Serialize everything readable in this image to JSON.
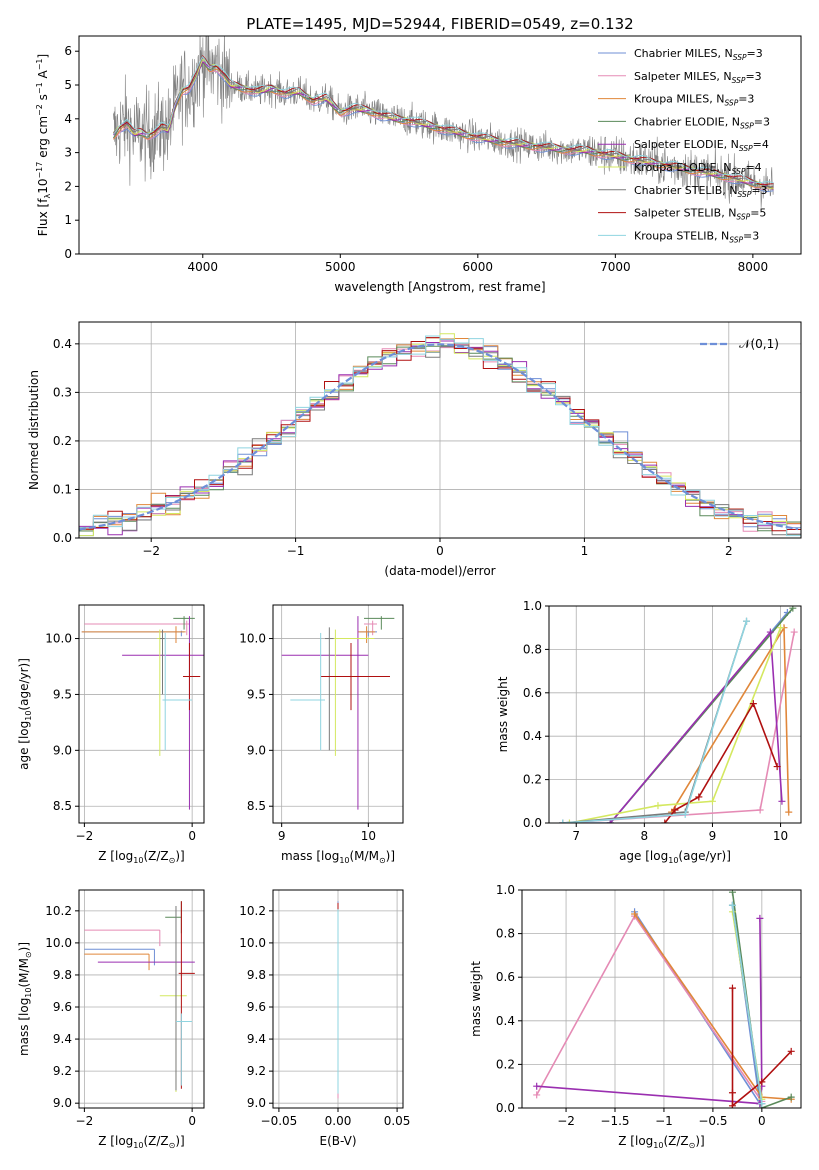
{
  "figure": {
    "title": "PLATE=1495, MJD=52944, FIBERID=0549, z=0.132"
  },
  "colors": {
    "Chabrier MILES": "#6f8fd6",
    "Salpeter MILES": "#e58bb5",
    "Kroupa MILES": "#e0873a",
    "Chabrier ELODIE": "#5a8a5a",
    "Salpeter ELODIE": "#9a2fb0",
    "Kroupa ELODIE": "#d4e860",
    "Chabrier STELIB": "#7a7a7a",
    "Salpeter STELIB": "#b01010",
    "Kroupa STELIB": "#8fd4e0"
  },
  "legend": [
    {
      "key": "Chabrier MILES",
      "pre": "Chabrier MILES, N",
      "sub": "SSP",
      "post": "=3"
    },
    {
      "key": "Salpeter MILES",
      "pre": "Salpeter MILES, N",
      "sub": "SSP",
      "post": "=3"
    },
    {
      "key": "Kroupa MILES",
      "pre": "Kroupa MILES, N",
      "sub": "SSP",
      "post": "=3"
    },
    {
      "key": "Chabrier ELODIE",
      "pre": "Chabrier ELODIE, N",
      "sub": "SSP",
      "post": "=3"
    },
    {
      "key": "Salpeter ELODIE",
      "pre": "Salpeter ELODIE, N",
      "sub": "SSP",
      "post": "=4"
    },
    {
      "key": "Kroupa ELODIE",
      "pre": "Kroupa ELODIE, N",
      "sub": "SSP",
      "post": "=4"
    },
    {
      "key": "Chabrier STELIB",
      "pre": "Chabrier STELIB, N",
      "sub": "SSP",
      "post": "=3"
    },
    {
      "key": "Salpeter STELIB",
      "pre": "Salpeter STELIB, N",
      "sub": "SSP",
      "post": "=5"
    },
    {
      "key": "Kroupa STELIB",
      "pre": "Kroupa STELIB, N",
      "sub": "SSP",
      "post": "=3"
    }
  ],
  "chart_data": [
    {
      "id": "spectrum",
      "type": "line",
      "xlabel": "wavelength [Angstrom, rest frame]",
      "ylabel_parts": {
        "pre": "Flux [f",
        "sub": "λ",
        "mid": "10",
        "sup1": "−17",
        "mid2": " erg cm",
        "sup2": "−2",
        "mid3": " s",
        "sup3": "−1",
        "mid4": " A",
        "sup4": "−1",
        "post": "]"
      },
      "xlim": [
        3100,
        8350
      ],
      "ylim": [
        0,
        6.45
      ],
      "xticks": [
        4000,
        5000,
        6000,
        7000,
        8000
      ],
      "yticks": [
        0,
        1,
        2,
        3,
        4,
        5,
        6
      ],
      "grid": false,
      "model_continuum": {
        "x": [
          3350,
          3400,
          3450,
          3500,
          3550,
          3600,
          3650,
          3700,
          3750,
          3800,
          3850,
          3900,
          3950,
          4000,
          4050,
          4100,
          4150,
          4200,
          4300,
          4400,
          4500,
          4600,
          4700,
          4800,
          4900,
          5000,
          5100,
          5200,
          5300,
          5400,
          5500,
          5600,
          5700,
          5800,
          5900,
          6000,
          6200,
          6400,
          6600,
          6800,
          7000,
          7200,
          7400,
          7600,
          7800,
          8000,
          8150
        ],
        "y": [
          3.5,
          3.75,
          3.85,
          3.55,
          3.6,
          3.5,
          3.6,
          3.75,
          3.65,
          4.4,
          4.85,
          4.9,
          5.25,
          5.75,
          5.5,
          5.55,
          5.3,
          5.0,
          4.9,
          4.8,
          4.9,
          4.75,
          4.8,
          4.55,
          4.6,
          4.2,
          4.3,
          4.25,
          4.1,
          4.0,
          3.95,
          3.85,
          3.75,
          3.65,
          3.55,
          3.45,
          3.3,
          3.2,
          3.1,
          3.05,
          2.9,
          2.75,
          2.6,
          2.45,
          2.3,
          2.1,
          1.95
        ]
      },
      "observed_range": [
        3350,
        8150
      ],
      "observed_scatter": 0.55
    },
    {
      "id": "residuals",
      "type": "step-histogram",
      "xlabel": "(data-model)/error",
      "ylabel": "Normed distribution",
      "xlim": [
        -2.5,
        2.5
      ],
      "ylim": [
        0,
        0.445
      ],
      "xticks": [
        -2,
        -1,
        0,
        1,
        2
      ],
      "yticks": [
        0.0,
        0.1,
        0.2,
        0.3,
        0.4
      ],
      "grid": true,
      "bin_width": 0.1,
      "reference_curve": {
        "label": "𝒩(0,1)",
        "mean": 0,
        "sigma": 1
      },
      "jitter": 0.03
    },
    {
      "id": "age_vs_Z",
      "type": "errorbar",
      "xlabel_parts": {
        "pre": "Z [log",
        "sub1": "10",
        "mid": "(Z/Z",
        "sub2": "⊙",
        "post": ")]"
      },
      "ylabel_parts": {
        "pre": "age  [log",
        "sub1": "10",
        "post": "(age/yr)]"
      },
      "xlim": [
        -2.1,
        0.22
      ],
      "ylim": [
        8.35,
        10.3
      ],
      "xticks": [
        -2,
        0
      ],
      "yticks": [
        8.5,
        9.0,
        9.5,
        10.0
      ],
      "grid": true,
      "points": [
        {
          "key": "Chabrier MILES",
          "x": -0.2,
          "xerr": [
            1.85,
            0.05
          ],
          "y": 10.06,
          "yerr": [
            0.04,
            0.01
          ]
        },
        {
          "key": "Salpeter MILES",
          "x": -0.1,
          "xerr": [
            1.9,
            0.05
          ],
          "y": 10.13,
          "yerr": [
            0.1,
            0.03
          ]
        },
        {
          "key": "Kroupa MILES",
          "x": -0.3,
          "xerr": [
            1.75,
            0.18
          ],
          "y": 10.06,
          "yerr": [
            0.1,
            0.05
          ]
        },
        {
          "key": "Chabrier ELODIE",
          "x": -0.15,
          "xerr": [
            0.2,
            0.2
          ],
          "y": 10.18,
          "yerr": [
            0.1,
            0.02
          ]
        },
        {
          "key": "Salpeter ELODIE",
          "x": -0.05,
          "xerr": [
            1.25,
            0.75
          ],
          "y": 9.85,
          "yerr": [
            1.38,
            0.35
          ]
        },
        {
          "key": "Kroupa ELODIE",
          "x": -0.6,
          "xerr": [
            0.05,
            0.05
          ],
          "y": 10.0,
          "yerr": [
            1.05,
            0.08
          ]
        },
        {
          "key": "Chabrier STELIB",
          "x": -0.55,
          "xerr": [
            0.05,
            0.05
          ],
          "y": 10.0,
          "yerr": [
            0.5,
            0.08
          ]
        },
        {
          "key": "Salpeter STELIB",
          "x": -0.05,
          "xerr": [
            0.12,
            0.2
          ],
          "y": 9.66,
          "yerr": [
            0.3,
            0.3
          ]
        },
        {
          "key": "Kroupa STELIB",
          "x": -0.5,
          "xerr": [
            0.05,
            0.5
          ],
          "y": 9.45,
          "yerr": [
            0.45,
            0.6
          ]
        }
      ]
    },
    {
      "id": "age_vs_mass",
      "type": "errorbar",
      "xlabel_parts": {
        "pre": "mass [log",
        "sub1": "10",
        "mid": "(M/M",
        "sub2": "⊙",
        "post": ")]"
      },
      "xlim": [
        8.9,
        10.4
      ],
      "ylim": [
        8.35,
        10.3
      ],
      "xticks": [
        9,
        10
      ],
      "yticks": [
        8.5,
        9.0,
        9.5,
        10.0
      ],
      "grid": true,
      "points": [
        {
          "key": "Chabrier MILES",
          "x": 10.0,
          "xerr": [
            0.1,
            0.1
          ],
          "y": 10.06,
          "yerr": [
            0.04,
            0.01
          ]
        },
        {
          "key": "Salpeter MILES",
          "x": 10.05,
          "xerr": [
            0.1,
            0.05
          ],
          "y": 10.13,
          "yerr": [
            0.1,
            0.03
          ]
        },
        {
          "key": "Kroupa MILES",
          "x": 9.98,
          "xerr": [
            0.1,
            0.1
          ],
          "y": 10.06,
          "yerr": [
            0.1,
            0.05
          ]
        },
        {
          "key": "Chabrier ELODIE",
          "x": 10.15,
          "xerr": [
            0.2,
            0.15
          ],
          "y": 10.18,
          "yerr": [
            0.1,
            0.02
          ]
        },
        {
          "key": "Salpeter ELODIE",
          "x": 9.88,
          "xerr": [
            0.88,
            0.12
          ],
          "y": 9.85,
          "yerr": [
            1.38,
            0.35
          ]
        },
        {
          "key": "Kroupa ELODIE",
          "x": 9.62,
          "xerr": [
            0.05,
            0.45
          ],
          "y": 10.0,
          "yerr": [
            1.05,
            0.08
          ]
        },
        {
          "key": "Chabrier STELIB",
          "x": 9.55,
          "xerr": [
            0.05,
            0.05
          ],
          "y": 10.0,
          "yerr": [
            1.0,
            0.1
          ]
        },
        {
          "key": "Salpeter STELIB",
          "x": 9.8,
          "xerr": [
            0.35,
            0.45
          ],
          "y": 9.66,
          "yerr": [
            0.3,
            0.3
          ]
        },
        {
          "key": "Kroupa STELIB",
          "x": 9.45,
          "xerr": [
            0.35,
            0.05
          ],
          "y": 9.45,
          "yerr": [
            0.45,
            0.6
          ]
        }
      ]
    },
    {
      "id": "mass_weight_vs_age",
      "type": "line",
      "xlabel_parts": {
        "pre": "age  [log",
        "sub1": "10",
        "post": "(age/yr)]"
      },
      "ylabel": "mass weight",
      "xlim": [
        6.6,
        10.3
      ],
      "ylim": [
        0,
        1.0
      ],
      "xticks": [
        7,
        8,
        9,
        10
      ],
      "yticks": [
        0.0,
        0.2,
        0.4,
        0.6,
        0.8,
        1.0
      ],
      "grid": true,
      "series": [
        {
          "key": "Chabrier MILES",
          "x": [
            6.8,
            7.5,
            10.1
          ],
          "y": [
            0.0,
            0.0,
            0.97
          ]
        },
        {
          "key": "Salpeter MILES",
          "x": [
            6.8,
            9.7,
            10.2
          ],
          "y": [
            0.0,
            0.06,
            0.88
          ]
        },
        {
          "key": "Kroupa MILES",
          "x": [
            8.4,
            10.05,
            10.12
          ],
          "y": [
            0.05,
            0.9,
            0.05
          ]
        },
        {
          "key": "Chabrier ELODIE",
          "x": [
            7.5,
            10.18
          ],
          "y": [
            0.0,
            0.99
          ]
        },
        {
          "key": "Salpeter ELODIE",
          "x": [
            7.5,
            9.85,
            10.02
          ],
          "y": [
            0.0,
            0.88,
            0.1
          ]
        },
        {
          "key": "Kroupa ELODIE",
          "x": [
            6.9,
            8.2,
            9.0,
            10.0
          ],
          "y": [
            0.0,
            0.08,
            0.1,
            0.9
          ]
        },
        {
          "key": "Chabrier STELIB",
          "x": [
            6.8,
            8.6,
            9.5
          ],
          "y": [
            0.0,
            0.05,
            0.93
          ]
        },
        {
          "key": "Salpeter STELIB",
          "x": [
            8.3,
            8.45,
            8.8,
            9.6,
            9.95
          ],
          "y": [
            0.0,
            0.06,
            0.12,
            0.55,
            0.26
          ]
        },
        {
          "key": "Kroupa STELIB",
          "x": [
            6.8,
            8.6,
            9.5
          ],
          "y": [
            0.0,
            0.04,
            0.93
          ]
        }
      ]
    },
    {
      "id": "mass_vs_Z",
      "type": "errorbar",
      "xlabel_parts": {
        "pre": "Z [log",
        "sub1": "10",
        "mid": "(Z/Z",
        "sub2": "⊙",
        "post": ")]"
      },
      "ylabel_parts": {
        "pre": "mass [log",
        "sub1": "10",
        "mid": "(M/M",
        "sub2": "⊙",
        "post": ")]"
      },
      "xlim": [
        -2.1,
        0.22
      ],
      "ylim": [
        8.97,
        10.33
      ],
      "xticks": [
        -2,
        0
      ],
      "yticks": [
        9.0,
        9.2,
        9.4,
        9.6,
        9.8,
        10.0,
        10.2
      ],
      "grid": true,
      "points": [
        {
          "key": "Chabrier MILES",
          "x": -0.7,
          "xerr": [
            1.3,
            0.0
          ],
          "y": 9.96,
          "yerr": [
            0.1,
            0.0
          ]
        },
        {
          "key": "Salpeter MILES",
          "x": -0.6,
          "xerr": [
            1.4,
            0.0
          ],
          "y": 10.08,
          "yerr": [
            0.1,
            0.0
          ]
        },
        {
          "key": "Kroupa MILES",
          "x": -0.8,
          "xerr": [
            1.2,
            0.0
          ],
          "y": 9.93,
          "yerr": [
            0.1,
            0.0
          ]
        },
        {
          "key": "Chabrier ELODIE",
          "x": -0.2,
          "xerr": [
            0.3,
            0.0
          ],
          "y": 10.16,
          "yerr": [
            0.1,
            0.1
          ]
        },
        {
          "key": "Salpeter ELODIE",
          "x": -0.3,
          "xerr": [
            1.45,
            0.35
          ],
          "y": 9.88,
          "yerr": [
            0.0,
            0.0
          ]
        },
        {
          "key": "Kroupa ELODIE",
          "x": -0.3,
          "xerr": [
            0.3,
            0.2
          ],
          "y": 9.67,
          "yerr": [
            0.6,
            0.0
          ]
        },
        {
          "key": "Chabrier STELIB",
          "x": -0.3,
          "xerr": [
            0.0,
            0.0
          ],
          "y": 9.98,
          "yerr": [
            0.9,
            0.25
          ]
        },
        {
          "key": "Salpeter STELIB",
          "x": -0.2,
          "xerr": [
            0.05,
            0.25
          ],
          "y": 9.81,
          "yerr": [
            0.72,
            0.45
          ]
        },
        {
          "key": "Kroupa STELIB",
          "x": -0.2,
          "xerr": [
            0.1,
            0.2
          ],
          "y": 9.51,
          "yerr": [
            0.4,
            0.05
          ]
        }
      ]
    },
    {
      "id": "mass_vs_EBV",
      "type": "errorbar",
      "xlabel": "E(B-V)",
      "xlim": [
        -0.055,
        0.055
      ],
      "ylim": [
        8.97,
        10.33
      ],
      "xticks": [
        -0.05,
        0.0,
        0.05
      ],
      "xtick_labels": [
        "−0.05",
        "0.00",
        "0.05"
      ],
      "yticks": [
        9.0,
        9.2,
        9.4,
        9.6,
        9.8,
        10.0,
        10.2
      ],
      "grid": true,
      "points": [
        {
          "key": "Chabrier MILES",
          "x": 0.0,
          "y": 9.96,
          "yerr": [
            0.9,
            0.3
          ]
        },
        {
          "key": "Salpeter MILES",
          "x": 0.0,
          "y": 10.08,
          "yerr": [
            1.05,
            0.15
          ]
        },
        {
          "key": "Salpeter STELIB",
          "x": 0.0,
          "y": 9.8,
          "yerr": [
            0.7,
            0.45
          ]
        },
        {
          "key": "Kroupa ELODIE",
          "x": 0.0,
          "y": 9.67,
          "yerr": [
            0.6,
            0.5
          ]
        },
        {
          "key": "Kroupa STELIB",
          "x": 0.0,
          "y": 9.51,
          "yerr": [
            0.45,
            0.7
          ]
        }
      ]
    },
    {
      "id": "mass_weight_vs_Z",
      "type": "line",
      "xlabel_parts": {
        "pre": "Z [log",
        "sub1": "10",
        "mid": "(Z/Z",
        "sub2": "⊙",
        "post": ")]"
      },
      "ylabel": "mass weight",
      "xlim": [
        -2.45,
        0.4
      ],
      "ylim": [
        0,
        1.0
      ],
      "xticks": [
        -2.0,
        -1.5,
        -1.0,
        -0.5,
        0.0
      ],
      "yticks": [
        0.0,
        0.2,
        0.4,
        0.6,
        0.8,
        1.0
      ],
      "grid": true,
      "series": [
        {
          "key": "Chabrier MILES",
          "x": [
            -1.3,
            -0.02,
            -0.3
          ],
          "y": [
            0.9,
            0.02,
            0.93
          ]
        },
        {
          "key": "Salpeter MILES",
          "x": [
            -2.3,
            -1.3,
            0.0
          ],
          "y": [
            0.06,
            0.88,
            0.03
          ]
        },
        {
          "key": "Kroupa MILES",
          "x": [
            -1.3,
            0.0,
            0.3
          ],
          "y": [
            0.89,
            0.05,
            0.04
          ]
        },
        {
          "key": "Chabrier ELODIE",
          "x": [
            -0.3,
            0.0,
            0.3
          ],
          "y": [
            0.99,
            0.0,
            0.05
          ]
        },
        {
          "key": "Salpeter ELODIE",
          "x": [
            -2.3,
            -0.02,
            0.0,
            -0.02
          ],
          "y": [
            0.1,
            0.02,
            0.1,
            0.87
          ]
        },
        {
          "key": "Kroupa ELODIE",
          "x": [
            -0.3,
            0.0
          ],
          "y": [
            0.9,
            0.04
          ]
        },
        {
          "key": "Chabrier STELIB",
          "x": [
            -0.3,
            0.0
          ],
          "y": [
            0.93,
            0.02
          ]
        },
        {
          "key": "Salpeter STELIB",
          "x": [
            -0.3,
            -0.3,
            -0.3,
            0.0,
            0.3
          ],
          "y": [
            0.55,
            0.07,
            0.01,
            0.12,
            0.26
          ]
        },
        {
          "key": "Kroupa STELIB",
          "x": [
            -0.3,
            0.0
          ],
          "y": [
            0.93,
            0.02
          ]
        }
      ]
    }
  ]
}
